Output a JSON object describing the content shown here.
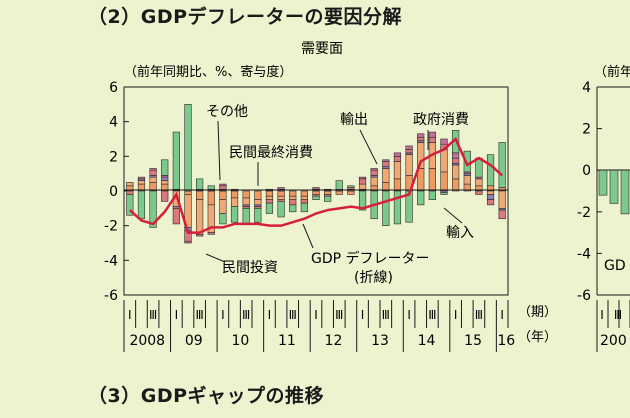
{
  "headings": {
    "section2": "（2）GDPデフレーターの要因分解",
    "section3": "（3）GDPギャップの推移"
  },
  "colors": {
    "background": "#eef3cf",
    "consumption": "#f09a62",
    "investment": "#f2a874",
    "other": "#8e7fb6",
    "exports": "#d9787e",
    "government": "#c56f9a",
    "imports": "#7cc98d",
    "line": "#d6203a",
    "text": "#1a1a1a"
  },
  "chart_data": [
    {
      "type": "bar",
      "stacked": true,
      "title": "需要面",
      "ylabel": "（前年同期比、%、寄与度）",
      "ylim": [
        -6,
        6
      ],
      "yticks": [
        6,
        4,
        2,
        0,
        -2,
        -4,
        -6
      ],
      "xlabel_quarter": "（期）",
      "xlabel_year": "（年）",
      "year_labels": [
        "2008",
        "09",
        "10",
        "11",
        "12",
        "13",
        "14",
        "15",
        "16"
      ],
      "quarter_labels": [
        "Ⅰ",
        "Ⅲ",
        "Ⅰ",
        "Ⅲ",
        "Ⅰ",
        "Ⅲ",
        "Ⅰ",
        "Ⅲ",
        "Ⅰ",
        "Ⅲ",
        "Ⅰ",
        "Ⅲ",
        "Ⅰ",
        "Ⅲ",
        "Ⅰ",
        "Ⅲ",
        "Ⅰ"
      ],
      "categories": [
        "08Q1",
        "08Q2",
        "08Q3",
        "08Q4",
        "09Q1",
        "09Q2",
        "09Q3",
        "09Q4",
        "10Q1",
        "10Q2",
        "10Q3",
        "10Q4",
        "11Q1",
        "11Q2",
        "11Q3",
        "11Q4",
        "12Q1",
        "12Q2",
        "12Q3",
        "12Q4",
        "13Q1",
        "13Q2",
        "13Q3",
        "13Q4",
        "14Q1",
        "14Q2",
        "14Q3",
        "14Q4",
        "15Q1",
        "15Q2",
        "15Q3",
        "15Q4",
        "16Q1"
      ],
      "series": [
        {
          "key": "consumption",
          "color_key": "consumption",
          "values": [
            0.3,
            0.4,
            0.5,
            0.4,
            0.1,
            -0.2,
            -0.5,
            -0.8,
            -0.5,
            -0.4,
            -0.4,
            -0.5,
            -0.3,
            -0.3,
            -0.3,
            -0.3,
            -0.2,
            -0.2,
            -0.2,
            -0.2,
            0.1,
            0.3,
            0.5,
            0.7,
            0.9,
            1.3,
            1.3,
            1.1,
            0.7,
            0.4,
            0.3,
            0.3,
            0.2
          ]
        },
        {
          "key": "investment",
          "color_key": "investment",
          "values": [
            0.2,
            0.2,
            0.3,
            0.2,
            -0.9,
            -1.9,
            -2.0,
            -1.6,
            -0.8,
            -0.5,
            -0.4,
            -0.3,
            -0.2,
            -0.2,
            -0.2,
            -0.2,
            0.0,
            0.0,
            0.1,
            0.1,
            0.3,
            0.5,
            0.8,
            1.0,
            1.2,
            1.5,
            1.5,
            1.3,
            0.8,
            0.5,
            0.4,
            -0.2,
            -1.0
          ]
        },
        {
          "key": "other",
          "color_key": "other",
          "values": [
            0.0,
            0.1,
            0.1,
            0.2,
            -0.1,
            -0.2,
            0.1,
            0.1,
            0.1,
            0.0,
            -0.1,
            -0.1,
            0.1,
            0.1,
            0.0,
            0.0,
            0.1,
            0.1,
            0.0,
            0.0,
            0.0,
            0.1,
            0.1,
            0.0,
            0.1,
            0.1,
            0.0,
            -0.1,
            0.1,
            0.1,
            0.0,
            -0.3,
            -0.1
          ]
        },
        {
          "key": "exports",
          "color_key": "exports",
          "values": [
            -0.2,
            0.1,
            0.3,
            -0.6,
            -0.9,
            -0.6,
            -0.1,
            -0.1,
            0.2,
            0.1,
            -0.1,
            -0.1,
            -0.2,
            -0.1,
            -0.3,
            -0.2,
            -0.1,
            -0.1,
            0.0,
            0.1,
            0.3,
            0.3,
            0.3,
            0.3,
            0.2,
            0.2,
            0.3,
            0.3,
            0.3,
            0.0,
            -0.2,
            -0.3,
            -0.5
          ]
        },
        {
          "key": "government",
          "color_key": "government",
          "values": [
            0.0,
            0.0,
            0.1,
            0.1,
            0.0,
            -0.1,
            0.0,
            0.0,
            0.1,
            0.0,
            0.0,
            0.0,
            0.0,
            0.1,
            0.0,
            0.0,
            0.1,
            0.0,
            0.0,
            0.0,
            0.1,
            0.1,
            0.1,
            0.2,
            0.2,
            0.2,
            0.3,
            0.3,
            0.3,
            0.1,
            0.1,
            0.0,
            0.0
          ]
        },
        {
          "key": "imports",
          "color_key": "imports",
          "values": [
            -1.2,
            -1.6,
            -2.1,
            0.9,
            3.3,
            5.0,
            0.6,
            0.2,
            -0.6,
            -0.9,
            -0.9,
            -0.8,
            -0.6,
            -0.9,
            -0.4,
            -0.5,
            -0.2,
            -0.3,
            0.5,
            0.1,
            -1.1,
            -1.6,
            -2.0,
            -1.9,
            -1.8,
            -0.8,
            -0.5,
            -0.1,
            1.3,
            1.2,
            1.1,
            1.8,
            2.6
          ]
        }
      ],
      "line_values": [
        -1.1,
        -1.7,
        -1.9,
        -1.2,
        -0.2,
        -2.4,
        -2.4,
        -2.1,
        -2.1,
        -1.9,
        -1.9,
        -1.9,
        -2.0,
        -2.0,
        -1.8,
        -1.6,
        -1.3,
        -1.1,
        -1.0,
        -0.9,
        -1.0,
        -0.8,
        -0.6,
        -0.4,
        -0.2,
        1.7,
        2.1,
        2.4,
        3.0,
        1.5,
        1.9,
        1.5,
        0.9
      ]
    },
    {
      "type": "bar",
      "partial": true,
      "ylabel": "（前年",
      "ylim": [
        -6,
        4
      ],
      "yticks": [
        4,
        2,
        0,
        -2,
        -4,
        -6
      ],
      "year_labels": [
        "200"
      ],
      "quarter_labels": [
        "Ⅰ",
        "Ⅲ"
      ],
      "label_fragment": "GD",
      "values": [
        -1.2,
        -1.6,
        -2.1
      ]
    }
  ],
  "annotations": {
    "other": "その他",
    "consumption": "民間最終消費",
    "exports": "輸出",
    "government": "政府消費",
    "imports": "輸入",
    "investment": "民間投資",
    "deflator": "GDP デフレーター",
    "deflator_note": "(折線)"
  }
}
